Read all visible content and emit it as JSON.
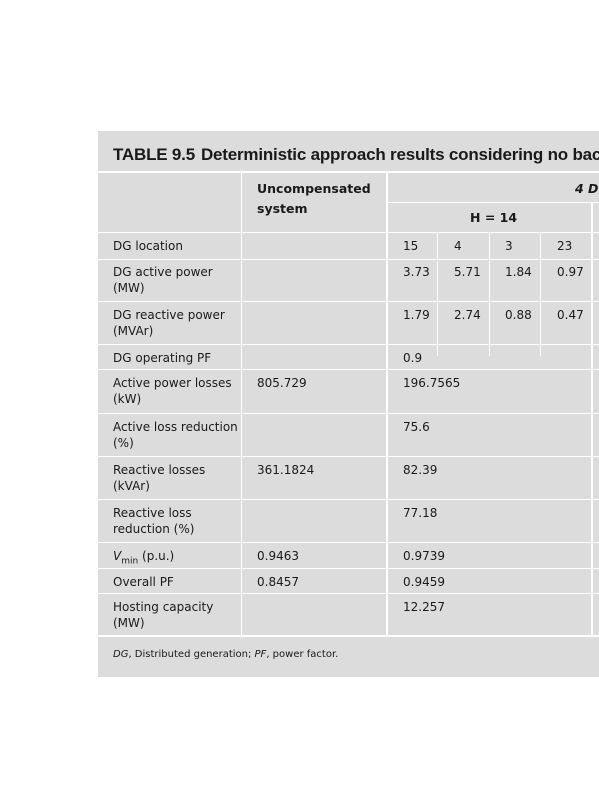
{
  "table": {
    "label": "TABLE 9.5",
    "title": "Deterministic approach results considering no back-fe",
    "header": {
      "col_uncompensated": "Uncompensated system",
      "col_group": "4 D",
      "col_h": "H = 14"
    },
    "dg_location": [
      "15",
      "4",
      "3",
      "23"
    ],
    "dg_active_power": [
      "3.73",
      "5.71",
      "1.84",
      "0.97"
    ],
    "dg_reactive_power": [
      "1.79",
      "2.74",
      "0.88",
      "0.47"
    ],
    "rows": {
      "dg_location": {
        "label": "DG location"
      },
      "dg_active_power": {
        "label": "DG active power (MW)"
      },
      "dg_reactive_power": {
        "label": "DG reactive power (MVAr)"
      },
      "dg_operating_pf": {
        "label": "DG operating PF",
        "uncompensated": "",
        "value": "0.9"
      },
      "active_power_losses": {
        "label": "Active power losses (kW)",
        "uncompensated": "805.729",
        "value": "196.7565"
      },
      "active_loss_reduction": {
        "label": "Active loss reduction (%)",
        "uncompensated": "",
        "value": "75.6"
      },
      "reactive_losses": {
        "label": "Reactive losses (kVAr)",
        "uncompensated": "361.1824",
        "value": "82.39"
      },
      "reactive_loss_reduction": {
        "label": "Reactive loss reduction (%)",
        "uncompensated": "",
        "value": "77.18"
      },
      "vmin": {
        "label_main": "V",
        "label_sub": "min",
        "label_unit": " (p.u.)",
        "uncompensated": "0.9463",
        "value": "0.9739"
      },
      "overall_pf": {
        "label": "Overall PF",
        "uncompensated": "0.8457",
        "value": "0.9459"
      },
      "hosting_capacity": {
        "label": "Hosting capacity (MW)",
        "uncompensated": "",
        "value": "12.257"
      }
    },
    "footnote": {
      "abbr1": "DG",
      "def1": ", Distributed generation; ",
      "abbr2": "PF",
      "def2": ", power factor."
    }
  }
}
